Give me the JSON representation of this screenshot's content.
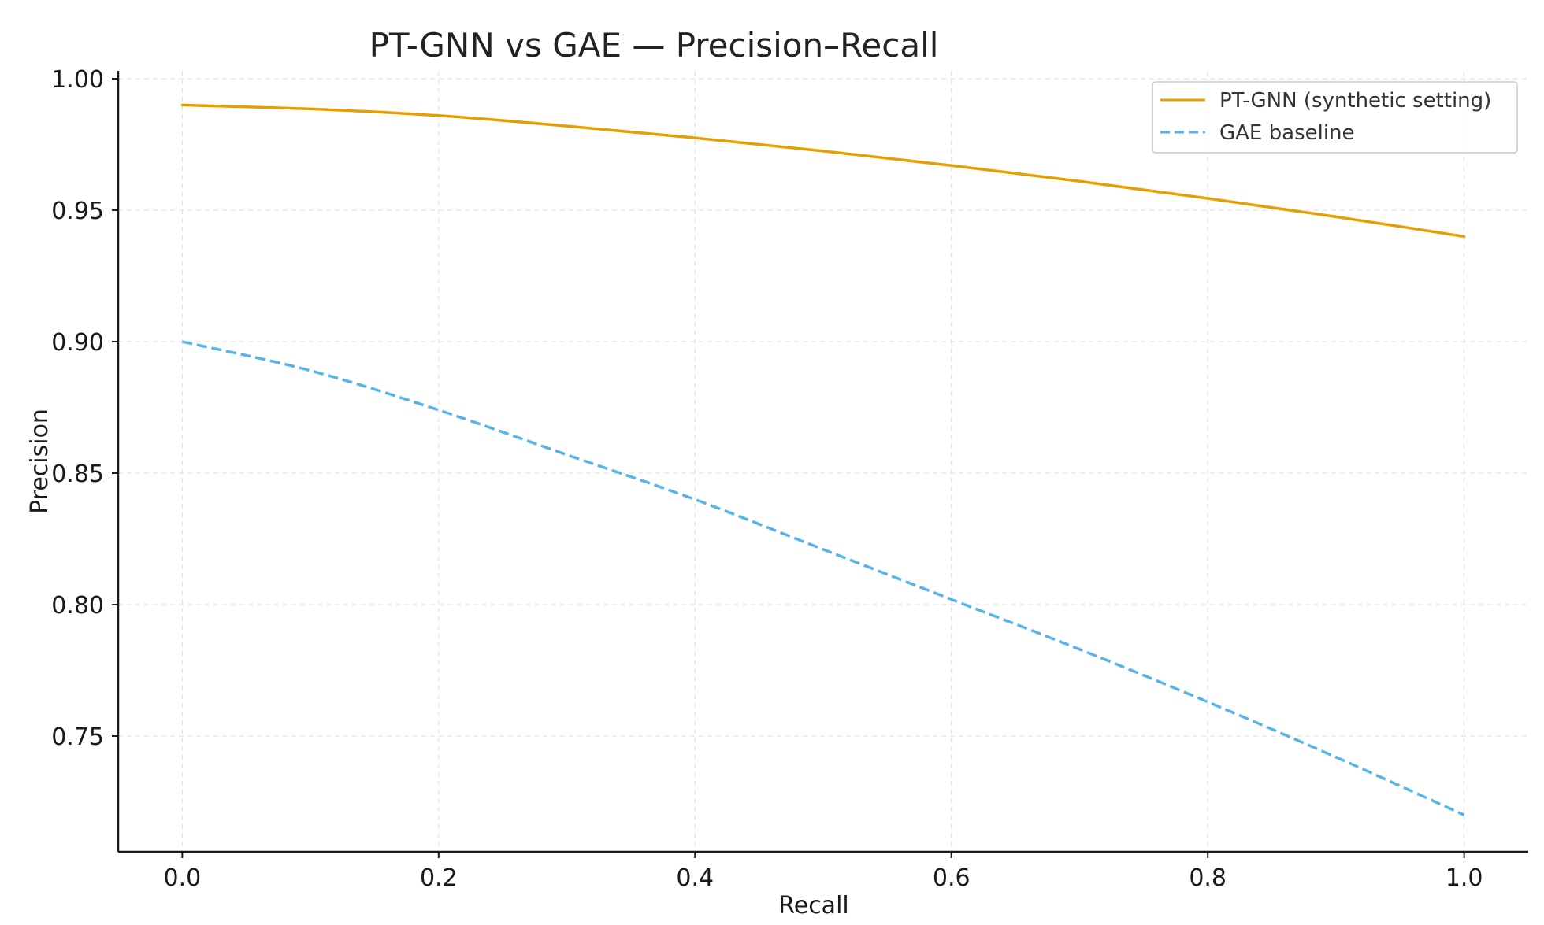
{
  "chart_data": {
    "type": "line",
    "title": "PT-GNN vs GAE — Precision–Recall",
    "xlabel": "Recall",
    "ylabel": "Precision",
    "xlim": [
      -0.05,
      1.05
    ],
    "ylim": [
      0.706,
      1.003
    ],
    "xticks": [
      0.0,
      0.2,
      0.4,
      0.6,
      0.8,
      1.0
    ],
    "xtick_labels": [
      "0.0",
      "0.2",
      "0.4",
      "0.6",
      "0.8",
      "1.0"
    ],
    "yticks": [
      0.75,
      0.8,
      0.85,
      0.9,
      0.95,
      1.0
    ],
    "ytick_labels": [
      "0.75",
      "0.80",
      "0.85",
      "0.90",
      "0.95",
      "1.00"
    ],
    "grid": true,
    "legend_position": "top-right",
    "x": [
      0.0,
      0.1,
      0.2,
      0.3,
      0.4,
      0.5,
      0.6,
      0.7,
      0.8,
      0.9,
      1.0
    ],
    "series": [
      {
        "name": "PT-GNN (synthetic setting)",
        "color": "#E69F00",
        "style": "solid",
        "values": [
          0.99,
          0.9885,
          0.986,
          0.982,
          0.9775,
          0.9725,
          0.967,
          0.961,
          0.9545,
          0.9475,
          0.94
        ]
      },
      {
        "name": "GAE baseline",
        "color": "#56B4E9",
        "style": "dashed",
        "values": [
          0.9,
          0.889,
          0.874,
          0.857,
          0.84,
          0.821,
          0.802,
          0.783,
          0.763,
          0.742,
          0.72
        ]
      }
    ]
  }
}
